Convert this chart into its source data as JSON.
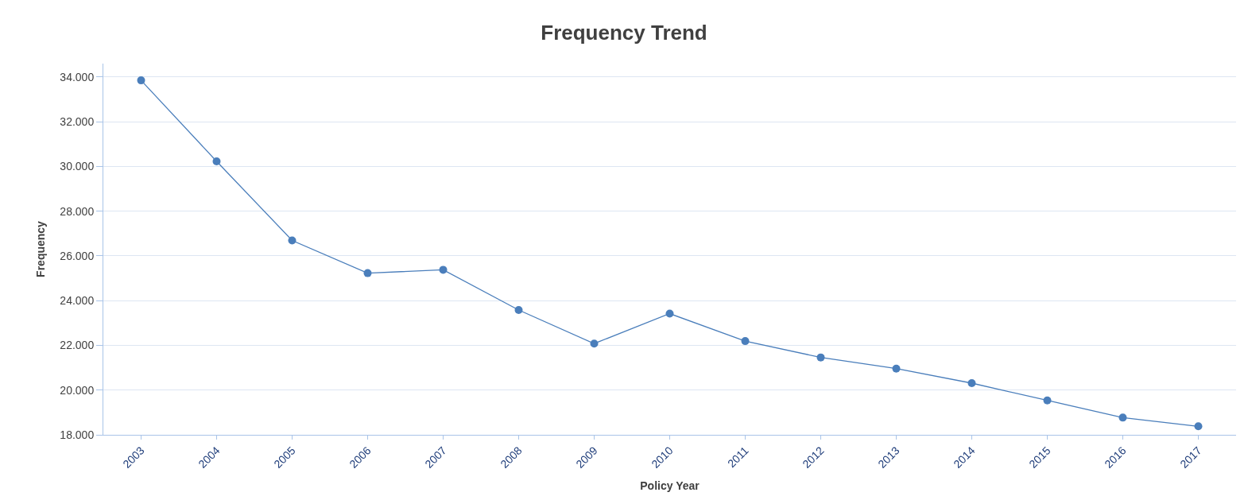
{
  "chart_data": {
    "type": "line",
    "title": "Frequency Trend",
    "xlabel": "Policy Year",
    "ylabel": "Frequency",
    "categories": [
      "2003",
      "2004",
      "2005",
      "2006",
      "2007",
      "2008",
      "2009",
      "2010",
      "2011",
      "2012",
      "2013",
      "2014",
      "2015",
      "2016",
      "2017"
    ],
    "series": [
      {
        "color": "#4a7ebb",
        "values": [
          33.85,
          30.23,
          26.69,
          25.23,
          25.38,
          23.58,
          22.08,
          23.42,
          22.19,
          21.46,
          20.96,
          20.31,
          19.54,
          18.77,
          18.38
        ]
      }
    ],
    "ylim": [
      18,
      34.6
    ],
    "yticks": [
      {
        "value": 18,
        "label": "18.000"
      },
      {
        "value": 20,
        "label": "20.000"
      },
      {
        "value": 22,
        "label": "22.000"
      },
      {
        "value": 24,
        "label": "24.000"
      },
      {
        "value": 26,
        "label": "26.000"
      },
      {
        "value": 28,
        "label": "28.000"
      },
      {
        "value": 30,
        "label": "30.000"
      },
      {
        "value": 32,
        "label": "32.000"
      },
      {
        "value": 34,
        "label": "34.000"
      }
    ],
    "grid": "y",
    "marker": "circle",
    "line_style": "solid"
  }
}
